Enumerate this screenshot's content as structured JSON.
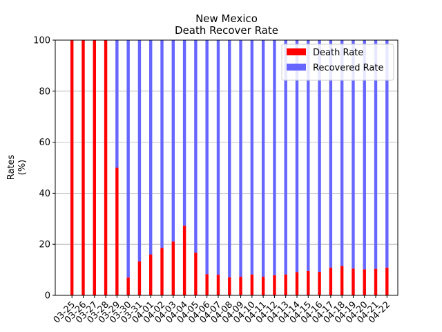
{
  "chart_data": {
    "type": "bar",
    "stacked": true,
    "title": "New Mexico",
    "subtitle": "Death Recover Rate",
    "xlabel": "",
    "ylabel_line1": "Rates",
    "ylabel_line2": "(%)",
    "ylim": [
      0,
      100
    ],
    "yticks": [
      0,
      20,
      40,
      60,
      80,
      100
    ],
    "grid": "horizontal",
    "legend_position": "top-right",
    "categories": [
      "03-25",
      "03-26",
      "03-27",
      "03-28",
      "03-29",
      "03-30",
      "03-31",
      "04-01",
      "04-02",
      "04-03",
      "04-04",
      "04-05",
      "04-06",
      "04-07",
      "04-08",
      "04-09",
      "04-10",
      "04-11",
      "04-12",
      "04-13",
      "04-14",
      "04-15",
      "04-16",
      "04-17",
      "04-18",
      "04-19",
      "04-20",
      "04-21",
      "04-22"
    ],
    "series": [
      {
        "name": "Death Rate",
        "color": "#ff0000",
        "values": [
          100,
          100,
          100,
          100,
          50,
          7,
          13.3,
          16,
          18.6,
          21.1,
          27.3,
          16.7,
          8.3,
          8.1,
          7.1,
          7.3,
          8.2,
          7.3,
          7.9,
          8.2,
          9.1,
          9.5,
          9.2,
          10.9,
          11.5,
          10.5,
          10.2,
          10.4,
          10.9
        ]
      },
      {
        "name": "Recovered Rate",
        "color": "#6666ff",
        "values": [
          0,
          0,
          0,
          0,
          50,
          93,
          86.7,
          84,
          81.4,
          78.9,
          72.7,
          83.3,
          91.7,
          91.9,
          92.9,
          92.7,
          91.8,
          92.7,
          92.1,
          91.8,
          90.9,
          90.5,
          90.8,
          89.1,
          88.5,
          89.5,
          89.8,
          89.6,
          89.1
        ]
      }
    ]
  }
}
